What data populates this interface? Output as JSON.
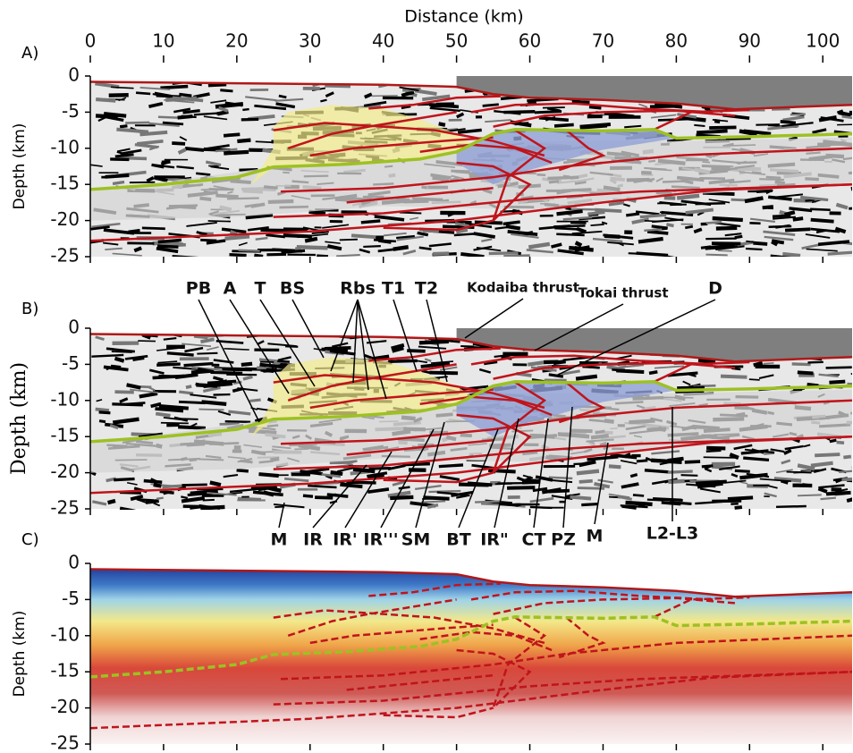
{
  "chart_data": [
    {
      "type": "image",
      "panel_label": "A)",
      "xlabel": "Distance (km)",
      "ylabel": "Depth (km)",
      "xlim": [
        0,
        104
      ],
      "xticks": [
        0,
        10,
        20,
        30,
        40,
        50,
        60,
        70,
        80,
        90,
        100
      ],
      "ylim": [
        -25,
        0
      ],
      "yticks": [
        0,
        -5,
        -10,
        -15,
        -20,
        -25
      ]
    },
    {
      "type": "image",
      "panel_label": "B)",
      "ylabel": "Depth (km)",
      "ylim": [
        -25,
        0
      ],
      "yticks": [
        0,
        -5,
        -10,
        -15,
        -20,
        -25
      ],
      "annotations": [
        "PB",
        "A",
        "T",
        "BS",
        "Rbs",
        "T1",
        "T2",
        "Kodaiba thrust",
        "Tokai thrust",
        "D",
        "M",
        "IR",
        "IR'",
        "IR'''",
        "SM",
        "BT",
        "IR\"",
        "CT",
        "PZ",
        "M",
        "L2-L3"
      ]
    },
    {
      "type": "image",
      "panel_label": "C)",
      "ylabel": "Depth (km)",
      "ylim": [
        -25,
        0
      ],
      "yticks": [
        0,
        -5,
        -10,
        -15,
        -20,
        -25
      ]
    }
  ]
}
